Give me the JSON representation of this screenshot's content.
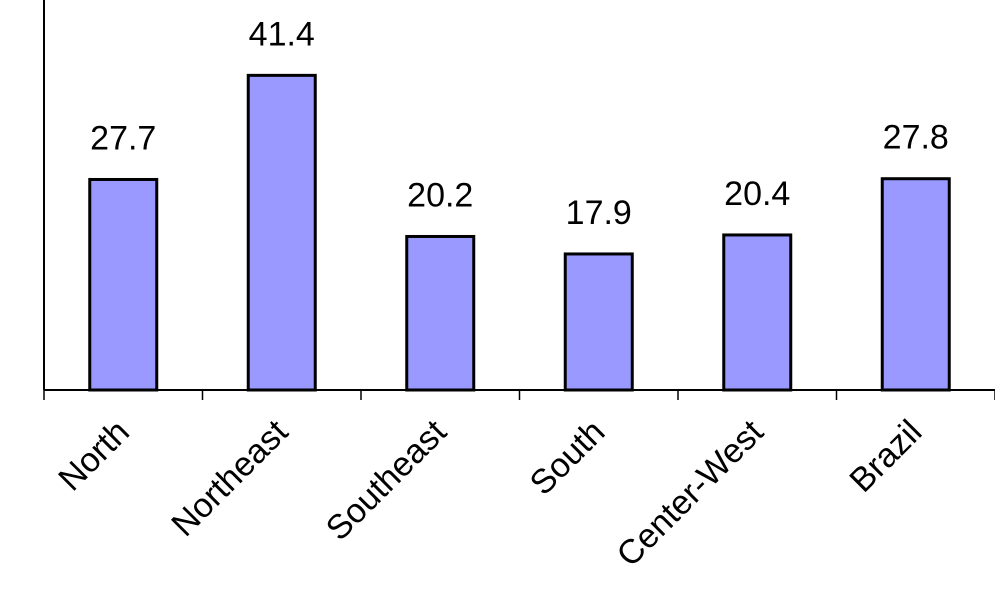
{
  "chart_data": {
    "type": "bar",
    "categories": [
      "North",
      "Northeast",
      "Southeast",
      "South",
      "Center-West",
      "Brazil"
    ],
    "values": [
      27.7,
      41.4,
      20.2,
      17.9,
      20.4,
      27.8
    ],
    "data_labels": [
      "27.7",
      "41.4",
      "20.2",
      "17.9",
      "20.4",
      "27.8"
    ],
    "title": "",
    "xlabel": "",
    "ylabel": "",
    "ylim": [
      0,
      50
    ],
    "grid": false,
    "legend": "none",
    "bar_color": "#9999ff",
    "bar_edge_color": "#000000"
  }
}
